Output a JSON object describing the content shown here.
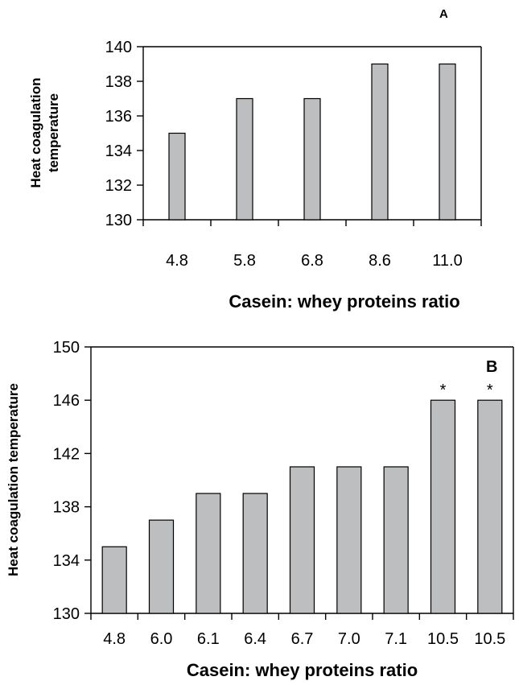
{
  "chart_data": [
    {
      "panel_label": "A",
      "type": "bar",
      "categories": [
        "4.8",
        "5.8",
        "6.8",
        "8.6",
        "11.0"
      ],
      "values": [
        135,
        137,
        137,
        139,
        139
      ],
      "xlabel": "Casein: whey proteins ratio",
      "ylabel": [
        "Heat coagulation",
        "temperature"
      ],
      "ylim": [
        130,
        140
      ],
      "yticks": [
        "130",
        "132",
        "134",
        "136",
        "138",
        "140"
      ],
      "annotations": [
        "",
        "",
        "",
        "",
        ""
      ],
      "grid": false,
      "bar_color": "#bcbec0"
    },
    {
      "panel_label": "B",
      "type": "bar",
      "categories": [
        "4.8",
        "6.0",
        "6.1",
        "6.4",
        "6.7",
        "7.0",
        "7.1",
        "10.5",
        "10.5"
      ],
      "values": [
        135,
        137,
        139,
        139,
        141,
        141,
        141,
        146,
        146
      ],
      "xlabel": "Casein: whey proteins ratio",
      "ylabel": [
        "Heat coagulation temperature"
      ],
      "ylim": [
        130,
        150
      ],
      "yticks": [
        "130",
        "134",
        "138",
        "142",
        "146",
        "150"
      ],
      "annotations": [
        "",
        "",
        "",
        "",
        "",
        "",
        "",
        "*",
        "*"
      ],
      "grid": false,
      "bar_color": "#bcbec0"
    }
  ]
}
